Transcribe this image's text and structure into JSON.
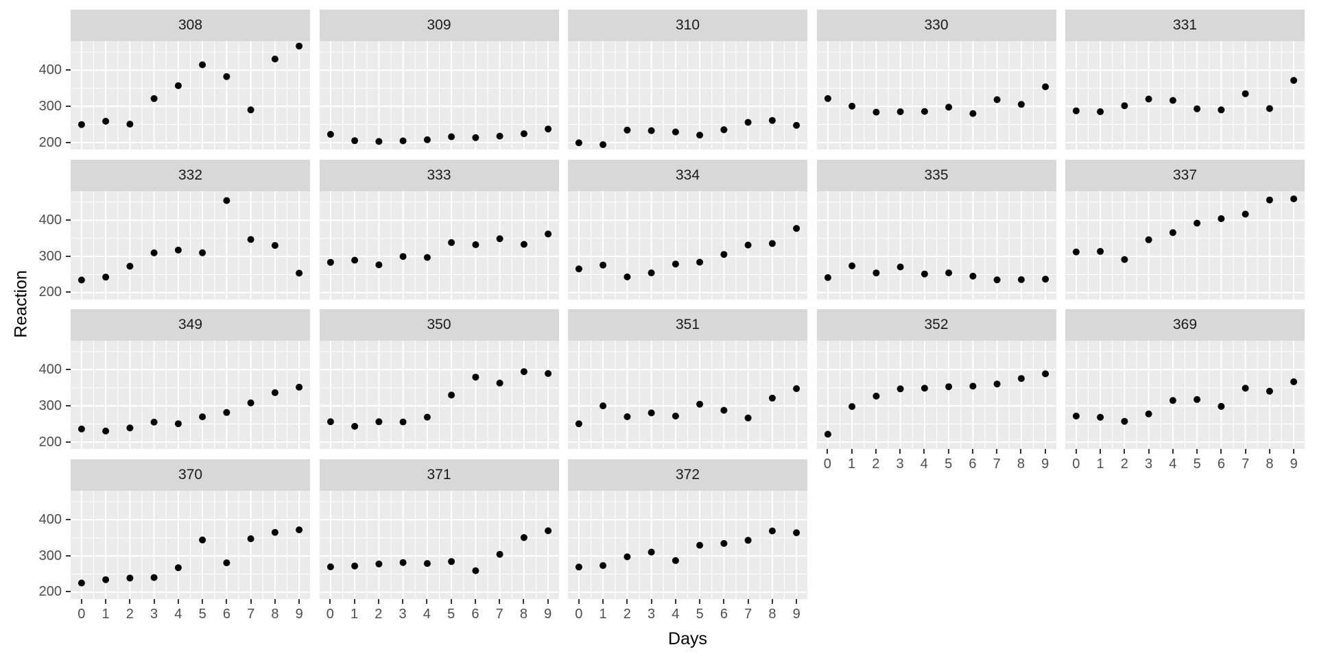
{
  "chart_data": {
    "type": "scatter",
    "title": "",
    "xlabel": "Days",
    "ylabel": "Reaction",
    "facet_variable": "Subject",
    "x": [
      0,
      1,
      2,
      3,
      4,
      5,
      6,
      7,
      8,
      9
    ],
    "x_tick_labels": [
      "0",
      "1",
      "2",
      "3",
      "4",
      "5",
      "6",
      "7",
      "8",
      "9"
    ],
    "y_ticks": [
      200,
      300,
      400
    ],
    "y_tick_labels": [
      "200",
      "300",
      "400"
    ],
    "y_minor_ticks": [
      250,
      350,
      450
    ],
    "xlim": [
      -0.45,
      9.45
    ],
    "ylim": [
      181,
      480
    ],
    "grid": true,
    "legend_position": "none",
    "facets": [
      {
        "label": "308",
        "values": [
          249.6,
          258.7,
          250.8,
          321.4,
          356.9,
          414.7,
          382.2,
          290.1,
          430.6,
          466.4
        ]
      },
      {
        "label": "309",
        "values": [
          222.7,
          205.3,
          203.0,
          204.7,
          207.7,
          216.0,
          213.6,
          217.7,
          224.3,
          237.3
        ]
      },
      {
        "label": "310",
        "values": [
          199.1,
          194.3,
          234.3,
          232.8,
          229.3,
          220.5,
          235.4,
          255.8,
          261.0,
          247.5
        ]
      },
      {
        "label": "330",
        "values": [
          321.5,
          300.4,
          283.9,
          285.1,
          285.8,
          297.6,
          280.2,
          318.3,
          305.3,
          354.0
        ]
      },
      {
        "label": "331",
        "values": [
          287.6,
          285.0,
          301.8,
          320.1,
          316.3,
          293.3,
          290.1,
          334.8,
          293.7,
          371.6
        ]
      },
      {
        "label": "332",
        "values": [
          234.9,
          242.8,
          273.0,
          309.8,
          317.5,
          310.0,
          454.2,
          346.8,
          330.3,
          253.9
        ]
      },
      {
        "label": "333",
        "values": [
          283.8,
          289.6,
          276.8,
          299.8,
          297.2,
          338.2,
          332.3,
          348.8,
          333.4,
          362.0
        ]
      },
      {
        "label": "334",
        "values": [
          265.5,
          276.2,
          243.4,
          254.7,
          279.0,
          284.2,
          305.5,
          331.5,
          335.7,
          377.3
        ]
      },
      {
        "label": "335",
        "values": [
          241.6,
          273.9,
          254.5,
          270.8,
          251.5,
          254.6,
          245.5,
          235.3,
          235.8,
          237.2
        ]
      },
      {
        "label": "337",
        "values": [
          312.3,
          313.8,
          291.6,
          346.1,
          365.7,
          391.8,
          404.3,
          416.7,
          455.9,
          458.9
        ]
      },
      {
        "label": "349",
        "values": [
          236.1,
          230.3,
          238.9,
          254.9,
          250.7,
          269.8,
          281.6,
          308.1,
          336.3,
          351.6
        ]
      },
      {
        "label": "350",
        "values": [
          256.3,
          243.5,
          256.2,
          255.5,
          268.9,
          329.7,
          379.4,
          362.9,
          394.5,
          389.1
        ]
      },
      {
        "label": "351",
        "values": [
          250.5,
          300.1,
          269.9,
          280.6,
          271.8,
          304.6,
          287.7,
          266.6,
          321.5,
          347.6
        ]
      },
      {
        "label": "352",
        "values": [
          221.7,
          298.2,
          326.9,
          346.9,
          348.7,
          352.8,
          354.4,
          360.4,
          375.6,
          388.5
        ]
      },
      {
        "label": "369",
        "values": [
          271.9,
          268.4,
          257.2,
          277.7,
          314.8,
          317.4,
          298.6,
          348.7,
          340.3,
          366.5
        ]
      },
      {
        "label": "370",
        "values": [
          225.3,
          234.5,
          238.9,
          240.5,
          267.5,
          344.2,
          281.1,
          347.6,
          365.2,
          372.2
        ]
      },
      {
        "label": "371",
        "values": [
          269.9,
          272.4,
          277.9,
          281.8,
          279.2,
          284.5,
          259.3,
          304.6,
          350.8,
          369.5
        ]
      },
      {
        "label": "372",
        "values": [
          269.4,
          273.5,
          297.6,
          310.6,
          287.2,
          329.6,
          334.5,
          343.2,
          369.1,
          364.1
        ]
      }
    ]
  },
  "style": {
    "background": "#FFFFFF",
    "panel_bg": "#EBEBEB",
    "strip_bg": "#D8D8D8",
    "grid_color": "#FFFFFF",
    "point_color": "#000000",
    "tick_label_color": "#4D4D4D",
    "strip_text_color": "#1A1A1A",
    "axis_title_color": "#000000",
    "tick_mark_color": "#333333"
  }
}
